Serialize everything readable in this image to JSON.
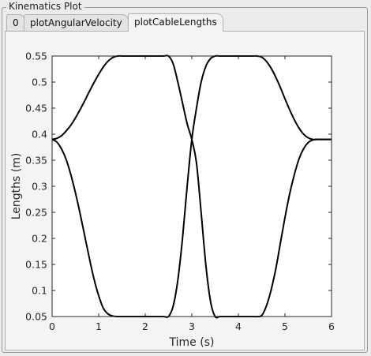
{
  "panel": {
    "title": "Kinematics Plot"
  },
  "tabs": [
    {
      "label": "0",
      "active": false
    },
    {
      "label": "plotAngularVelocity",
      "active": false
    },
    {
      "label": "plotCableLengths",
      "active": true
    }
  ],
  "chart_data": {
    "type": "line",
    "xlabel": "Time (s)",
    "ylabel": "Lengths (m)",
    "xlim": [
      0,
      6
    ],
    "ylim": [
      0.05,
      0.55
    ],
    "xticks": [
      "0",
      "1",
      "2",
      "3",
      "4",
      "5",
      "6"
    ],
    "yticks": [
      "0.05",
      "0.1",
      "0.15",
      "0.2",
      "0.25",
      "0.3",
      "0.35",
      "0.4",
      "0.45",
      "0.5",
      "0.55"
    ],
    "grid": false,
    "legend": "none",
    "line_color": "#000000",
    "series": [
      {
        "x": [
          0,
          0.1,
          0.2,
          0.3,
          0.4,
          0.5,
          0.6,
          0.7,
          0.8,
          0.9,
          1.0,
          1.1,
          1.2,
          1.3,
          1.4,
          1.5,
          1.6,
          1.7,
          1.8,
          1.9,
          2.0,
          2.1,
          2.2,
          2.3,
          2.4,
          2.5,
          2.6,
          2.7,
          2.8,
          2.9,
          3.0,
          3.1,
          3.2,
          3.3,
          3.4,
          3.5,
          3.6,
          3.7,
          3.8,
          3.9,
          4.0,
          4.1,
          4.2,
          4.3,
          4.4,
          4.5,
          4.6,
          4.7,
          4.8,
          4.9,
          5.0,
          5.1,
          5.2,
          5.3,
          5.4,
          5.5,
          5.6,
          5.7,
          5.8,
          5.9,
          6.0
        ],
        "values": [
          0.39,
          0.392,
          0.397,
          0.406,
          0.417,
          0.431,
          0.447,
          0.464,
          0.482,
          0.499,
          0.515,
          0.529,
          0.54,
          0.547,
          0.55,
          0.55,
          0.55,
          0.55,
          0.55,
          0.55,
          0.55,
          0.55,
          0.55,
          0.55,
          0.55,
          0.55,
          0.535,
          0.5,
          0.46,
          0.42,
          0.39,
          0.345,
          0.25,
          0.15,
          0.08,
          0.05,
          0.05,
          0.05,
          0.05,
          0.05,
          0.05,
          0.05,
          0.05,
          0.05,
          0.05,
          0.052,
          0.07,
          0.1,
          0.14,
          0.19,
          0.24,
          0.285,
          0.322,
          0.352,
          0.372,
          0.384,
          0.389,
          0.39,
          0.39,
          0.39,
          0.39
        ]
      },
      {
        "x": [
          0,
          0.1,
          0.2,
          0.3,
          0.4,
          0.5,
          0.6,
          0.7,
          0.8,
          0.9,
          1.0,
          1.1,
          1.2,
          1.3,
          1.4,
          1.5,
          1.6,
          1.7,
          1.8,
          1.9,
          2.0,
          2.1,
          2.2,
          2.3,
          2.4,
          2.5,
          2.6,
          2.7,
          2.8,
          2.9,
          3.0,
          3.1,
          3.2,
          3.3,
          3.4,
          3.5,
          3.6,
          3.7,
          3.8,
          3.9,
          4.0,
          4.1,
          4.2,
          4.3,
          4.4,
          4.5,
          4.6,
          4.7,
          4.8,
          4.9,
          5.0,
          5.1,
          5.2,
          5.3,
          5.4,
          5.5,
          5.6,
          5.7,
          5.8,
          5.9,
          6.0
        ],
        "values": [
          0.39,
          0.385,
          0.372,
          0.352,
          0.323,
          0.288,
          0.248,
          0.205,
          0.162,
          0.122,
          0.09,
          0.066,
          0.055,
          0.051,
          0.05,
          0.05,
          0.05,
          0.05,
          0.05,
          0.05,
          0.05,
          0.05,
          0.05,
          0.05,
          0.05,
          0.05,
          0.07,
          0.12,
          0.2,
          0.3,
          0.39,
          0.45,
          0.5,
          0.53,
          0.545,
          0.55,
          0.55,
          0.55,
          0.55,
          0.55,
          0.55,
          0.55,
          0.55,
          0.55,
          0.55,
          0.548,
          0.54,
          0.527,
          0.51,
          0.49,
          0.468,
          0.447,
          0.428,
          0.412,
          0.4,
          0.393,
          0.39,
          0.39,
          0.39,
          0.39,
          0.39
        ]
      }
    ]
  }
}
